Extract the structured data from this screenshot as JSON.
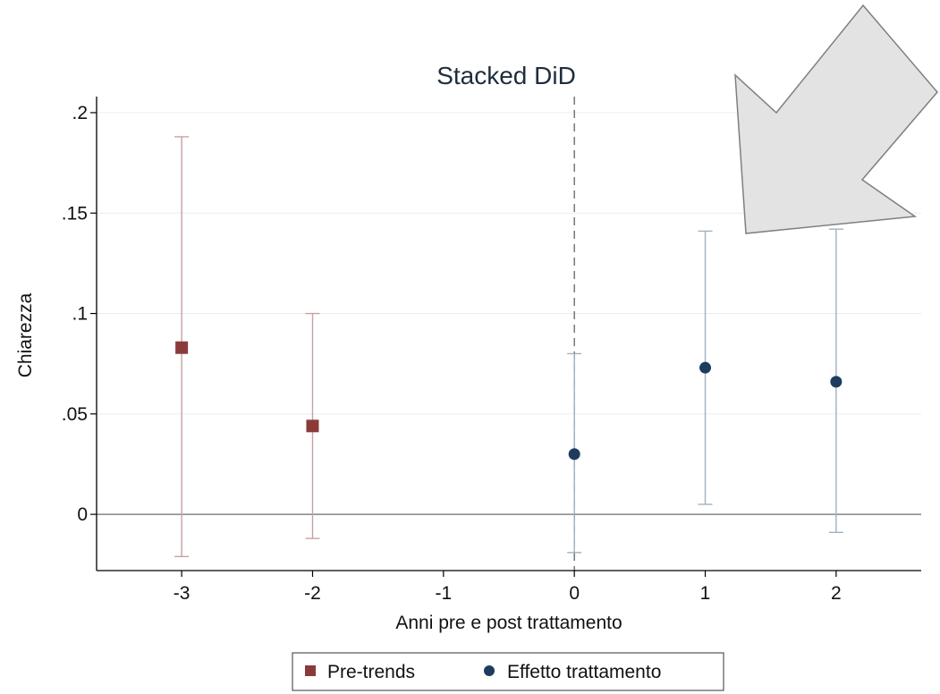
{
  "chart_data": {
    "type": "scatter",
    "title": "Stacked DiD",
    "xlabel": "Anni pre e post trattamento",
    "ylabel": "Chiarezza",
    "xlim": [
      -3.65,
      2.65
    ],
    "ylim": [
      -0.028,
      0.208
    ],
    "xticks": [
      -3,
      -2,
      -1,
      0,
      1,
      2
    ],
    "xtick_labels": [
      "-3",
      "-2",
      "-1",
      "0",
      "1",
      "2"
    ],
    "yticks": [
      0,
      0.05,
      0.1,
      0.15,
      0.2
    ],
    "ytick_labels": [
      "0",
      ".05",
      ".1",
      ".15",
      ".2"
    ],
    "grid": true,
    "reference_vline_x": 0,
    "reference_hline_y": 0,
    "legend_position": "bottom",
    "series": [
      {
        "name": "Pre-trends",
        "marker": "square",
        "color": "#8b3a3a",
        "ci_color": "#c9a0a0",
        "points": [
          {
            "x": -3,
            "y": 0.083,
            "ci_low": -0.021,
            "ci_high": 0.188
          },
          {
            "x": -2,
            "y": 0.044,
            "ci_low": -0.012,
            "ci_high": 0.1
          }
        ]
      },
      {
        "name": "Effetto trattamento",
        "marker": "circle",
        "color": "#1f3c5e",
        "ci_color": "#9fb0c2",
        "points": [
          {
            "x": 0,
            "y": 0.03,
            "ci_low": -0.019,
            "ci_high": 0.08
          },
          {
            "x": 1,
            "y": 0.073,
            "ci_low": 0.005,
            "ci_high": 0.141
          },
          {
            "x": 2,
            "y": 0.066,
            "ci_low": -0.009,
            "ci_high": 0.142
          }
        ]
      }
    ]
  },
  "annotation": {
    "shape": "arrow",
    "color": "#e3e3e3"
  }
}
